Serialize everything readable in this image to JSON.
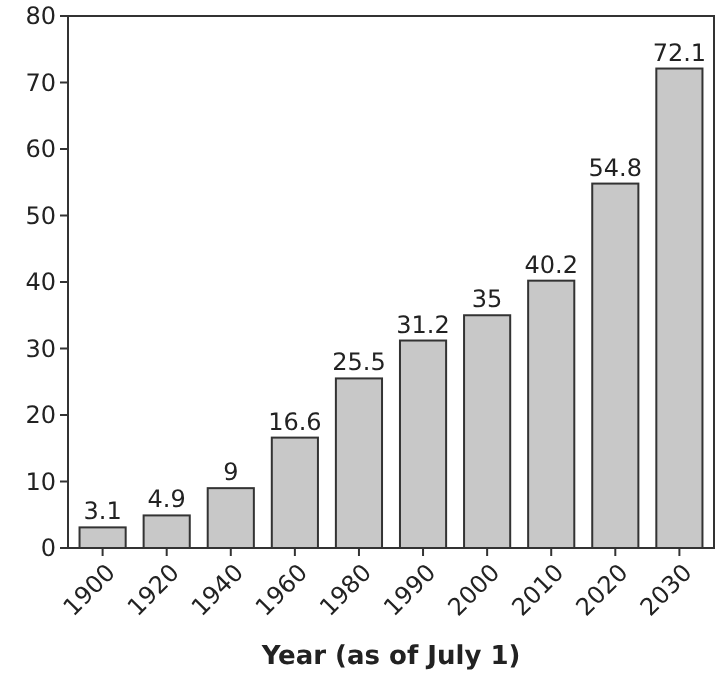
{
  "chart_data": {
    "type": "bar",
    "xlabel": "Year (as of July 1)",
    "categories": [
      "1900",
      "1920",
      "1940",
      "1960",
      "1980",
      "1990",
      "2000",
      "2010",
      "2020",
      "2030"
    ],
    "values": [
      3.1,
      4.9,
      9,
      16.6,
      25.5,
      31.2,
      35,
      40.2,
      54.8,
      72.1
    ],
    "color": "#c8c8c8",
    "ylim": [
      0,
      80
    ],
    "yticks": [
      0,
      10,
      20,
      30,
      40,
      50,
      60,
      70,
      80
    ],
    "data_labels": true,
    "grid": false
  }
}
